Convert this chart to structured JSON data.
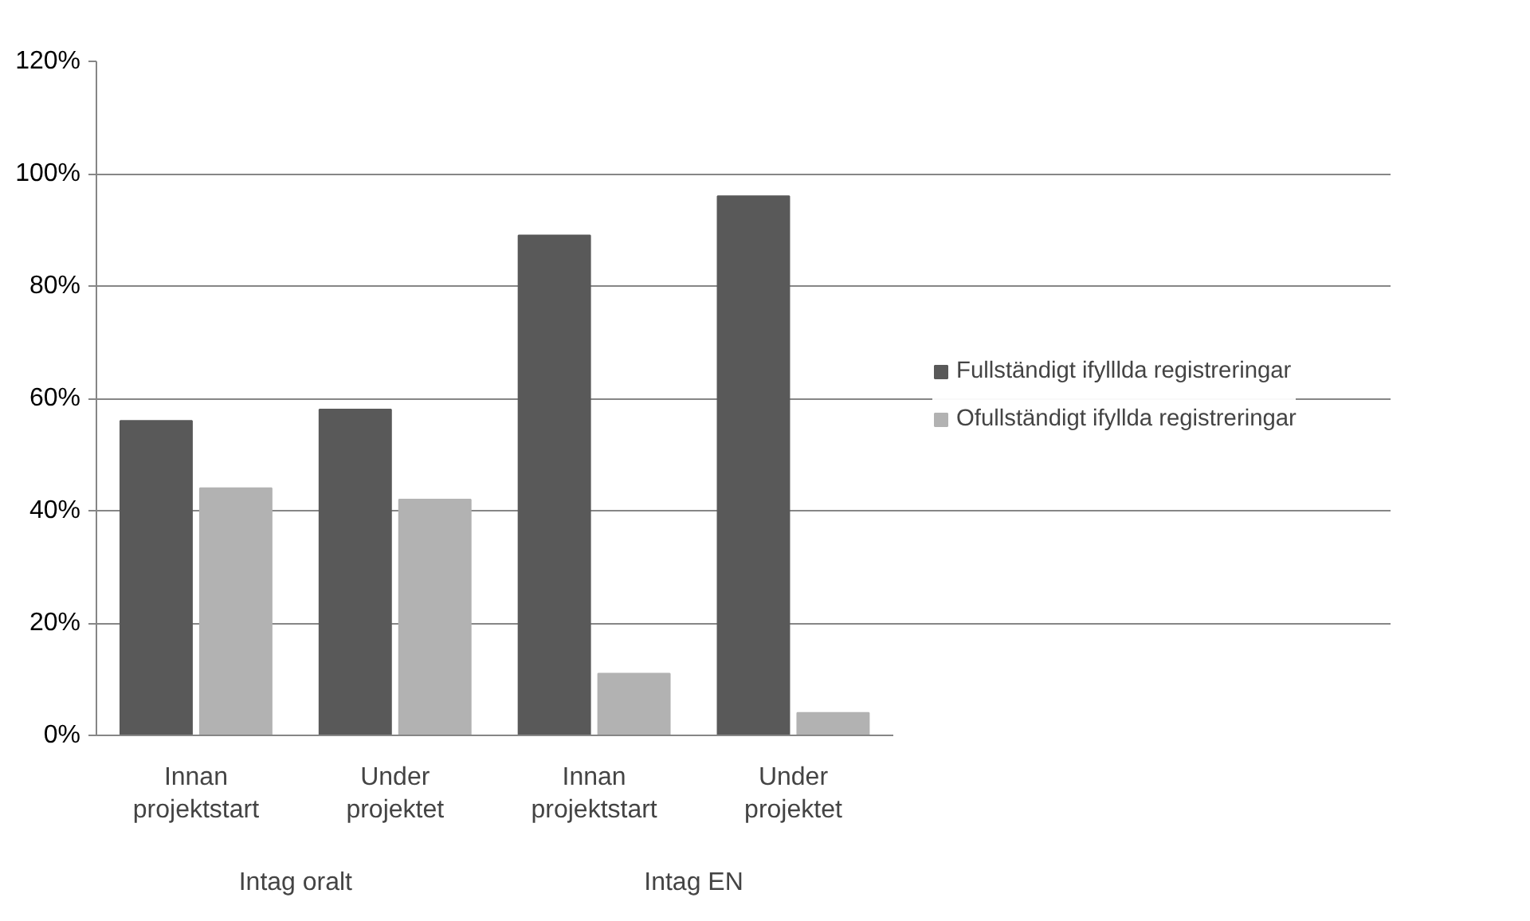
{
  "chart_data": {
    "type": "bar",
    "categories": [
      "Innan projektstart",
      "Under projektet",
      "Innan projektstart",
      "Under projektet"
    ],
    "series": [
      {
        "name": "Fullständigt ifylllda registreringar",
        "color": "#595959",
        "values": [
          56,
          58,
          89,
          96
        ]
      },
      {
        "name": "Ofullständigt ifyllda registreringar",
        "color": "#b2b2b2",
        "values": [
          44,
          42,
          11,
          4
        ]
      }
    ],
    "annotations": [
      "Intag oralt",
      "Intag EN"
    ],
    "ylim": [
      0,
      120
    ],
    "yticks": [
      {
        "value": 0,
        "label": "0%"
      },
      {
        "value": 20,
        "label": "20%"
      },
      {
        "value": 40,
        "label": "40%"
      },
      {
        "value": 60,
        "label": "60%"
      },
      {
        "value": 80,
        "label": "80%"
      },
      {
        "value": 100,
        "label": "100%"
      },
      {
        "value": 120,
        "label": "120%"
      }
    ],
    "grid": "y",
    "legend": "right"
  }
}
